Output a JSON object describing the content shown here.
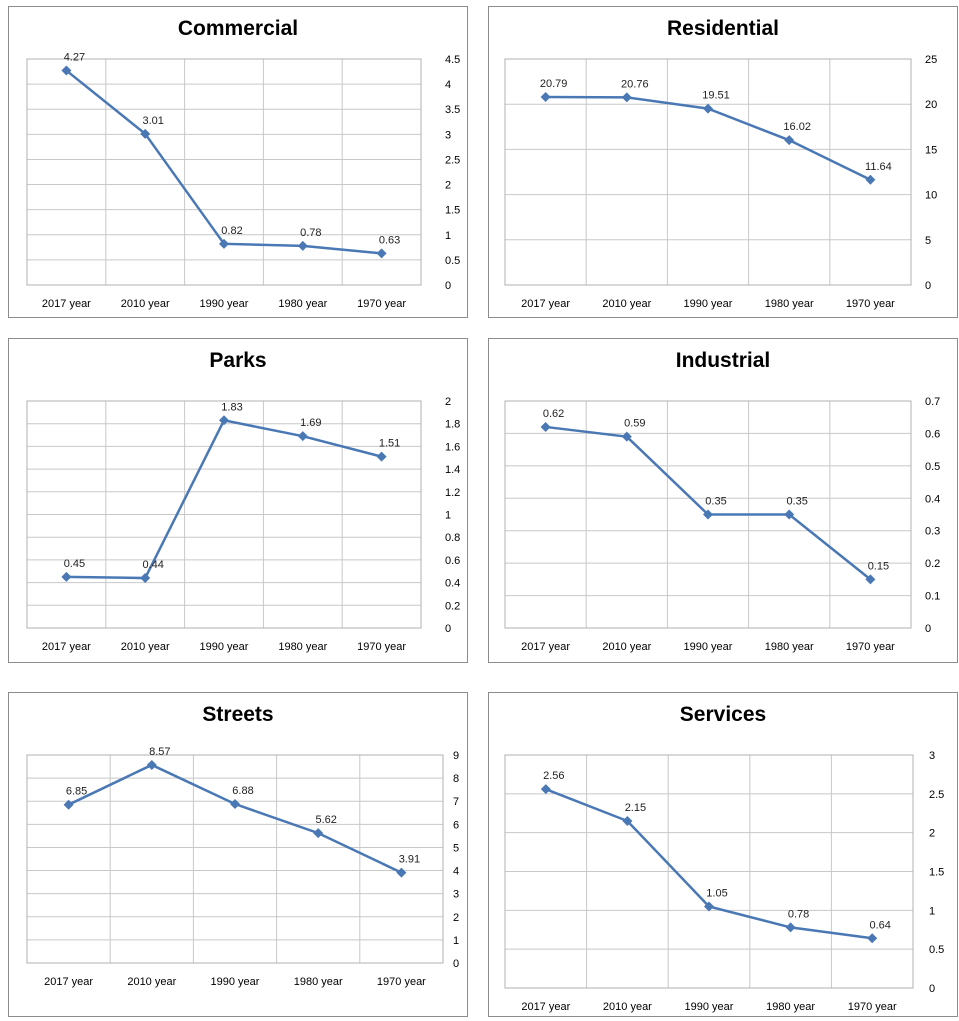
{
  "chart_data": [
    {
      "type": "line",
      "title": "Commercial",
      "categories": [
        "2017 year",
        "2010 year",
        "1990 year",
        "1980 year",
        "1970 year"
      ],
      "values": [
        4.27,
        3.01,
        0.82,
        0.78,
        0.63
      ],
      "value_labels": [
        "4.27",
        "3.01",
        "0.82",
        "0.78",
        "0.63"
      ],
      "ylim": [
        0,
        4.5
      ],
      "y_ticks": [
        "0",
        "0.5",
        "1",
        "1.5",
        "2",
        "2.5",
        "3",
        "3.5",
        "4",
        "4.5"
      ],
      "grid": true,
      "y_axis_side": "right"
    },
    {
      "type": "line",
      "title": "Residential",
      "categories": [
        "2017 year",
        "2010 year",
        "1990 year",
        "1980 year",
        "1970 year"
      ],
      "values": [
        20.79,
        20.76,
        19.51,
        16.02,
        11.64
      ],
      "value_labels": [
        "20.79",
        "20.76",
        "19.51",
        "16.02",
        "11.64"
      ],
      "ylim": [
        0,
        25
      ],
      "y_ticks": [
        "0",
        "5",
        "10",
        "15",
        "20",
        "25"
      ],
      "grid": true,
      "y_axis_side": "right"
    },
    {
      "type": "line",
      "title": "Parks",
      "categories": [
        "2017 year",
        "2010 year",
        "1990 year",
        "1980 year",
        "1970 year"
      ],
      "values": [
        0.45,
        0.44,
        1.83,
        1.69,
        1.51
      ],
      "value_labels": [
        "0.45",
        "0.44",
        "1.83",
        "1.69",
        "1.51"
      ],
      "ylim": [
        0,
        2
      ],
      "y_ticks": [
        "0",
        "0.2",
        "0.4",
        "0.6",
        "0.8",
        "1",
        "1.2",
        "1.4",
        "1.6",
        "1.8",
        "2"
      ],
      "grid": true,
      "y_axis_side": "right"
    },
    {
      "type": "line",
      "title": "Industrial",
      "categories": [
        "2017 year",
        "2010 year",
        "1990 year",
        "1980 year",
        "1970 year"
      ],
      "values": [
        0.62,
        0.59,
        0.35,
        0.35,
        0.15
      ],
      "value_labels": [
        "0.62",
        "0.59",
        "0.35",
        "0.35",
        "0.15"
      ],
      "ylim": [
        0,
        0.7
      ],
      "y_ticks": [
        "0",
        "0.1",
        "0.2",
        "0.3",
        "0.4",
        "0.5",
        "0.6",
        "0.7"
      ],
      "grid": true,
      "y_axis_side": "right"
    },
    {
      "type": "line",
      "title": "Streets",
      "categories": [
        "2017 year",
        "2010 year",
        "1990 year",
        "1980 year",
        "1970 year"
      ],
      "values": [
        6.85,
        8.57,
        6.88,
        5.62,
        3.91
      ],
      "value_labels": [
        "6.85",
        "8.57",
        "6.88",
        "5.62",
        "3.91"
      ],
      "ylim": [
        0,
        9
      ],
      "y_ticks": [
        "0",
        "1",
        "2",
        "3",
        "4",
        "5",
        "6",
        "7",
        "8",
        "9"
      ],
      "grid": true,
      "y_axis_side": "right"
    },
    {
      "type": "line",
      "title": "Services",
      "categories": [
        "2017 year",
        "2010 year",
        "1990 year",
        "1980 year",
        "1970 year"
      ],
      "values": [
        2.56,
        2.15,
        1.05,
        0.78,
        0.64
      ],
      "value_labels": [
        "2.56",
        "2.15",
        "1.05",
        "0.78",
        "0.64"
      ],
      "ylim": [
        0,
        3
      ],
      "y_ticks": [
        "0",
        "0.5",
        "1",
        "1.5",
        "2",
        "2.5",
        "3"
      ],
      "grid": true,
      "y_axis_side": "right"
    }
  ],
  "colors": {
    "line": "#4a78b5",
    "marker": "#4a78b5",
    "grid": "#c8c8c8",
    "plot_border": "#b0b0b0"
  }
}
